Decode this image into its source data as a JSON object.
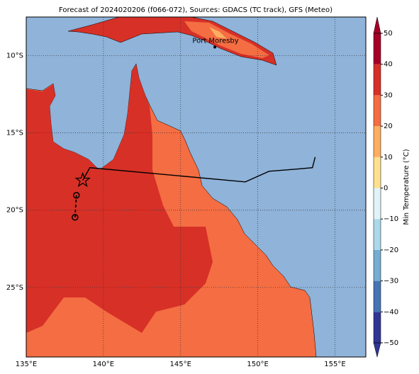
{
  "chart_data": {
    "type": "map",
    "title": "Forecast of 2024020206 (f066-072), Sources: GDACS (TC track), GFS (Meteo)",
    "xlim": [
      135,
      157
    ],
    "ylim": [
      -29.5,
      -7.5
    ],
    "xticks": [
      {
        "value": 135,
        "label": "135°E"
      },
      {
        "value": 140,
        "label": "140°E"
      },
      {
        "value": 145,
        "label": "145°E"
      },
      {
        "value": 150,
        "label": "150°E"
      },
      {
        "value": 155,
        "label": "155°E"
      }
    ],
    "yticks": [
      {
        "value": -10,
        "label": "10°S"
      },
      {
        "value": -15,
        "label": "15°S"
      },
      {
        "value": -20,
        "label": "20°S"
      },
      {
        "value": -25,
        "label": "25°S"
      }
    ],
    "grid": true,
    "colorbar": {
      "label": "Min Temperature (°C)",
      "lim": [
        -50,
        50
      ],
      "ticks": [
        {
          "value": -50,
          "label": "−50"
        },
        {
          "value": -40,
          "label": "−40"
        },
        {
          "value": -30,
          "label": "−30"
        },
        {
          "value": -20,
          "label": "−20"
        },
        {
          "value": -10,
          "label": "−10"
        },
        0,
        10,
        20,
        30,
        40,
        50
      ],
      "colors": [
        "#313695",
        "#4575b4",
        "#74add1",
        "#abd9e9",
        "#e0f3f8",
        "#fee090",
        "#fdae61",
        "#f46d43",
        "#d73027",
        "#a50026"
      ]
    },
    "track": {
      "x": [
        138.66,
        139.12,
        149.19,
        150.74,
        152.53,
        153.54,
        153.72
      ],
      "y": [
        -18.07,
        -17.25,
        -18.17,
        -17.48,
        -17.34,
        -17.25,
        -16.56
      ]
    },
    "track_forecast": {
      "x": [
        138.16,
        138.25
      ],
      "y": [
        -20.46,
        -19.04
      ]
    },
    "storm": {
      "x": 138.66,
      "y": -18.07
    },
    "positions": {
      "x": [
        138.25,
        138.16
      ],
      "y": [
        -19.04,
        -20.46
      ]
    },
    "places": [
      {
        "name": "Port Moresby",
        "x": 147.22,
        "y": -9.45
      }
    ]
  }
}
